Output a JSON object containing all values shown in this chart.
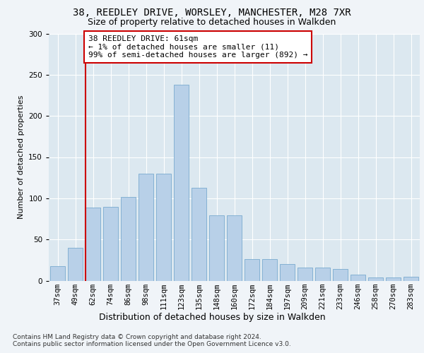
{
  "title_line1": "38, REEDLEY DRIVE, WORSLEY, MANCHESTER, M28 7XR",
  "title_line2": "Size of property relative to detached houses in Walkden",
  "xlabel": "Distribution of detached houses by size in Walkden",
  "ylabel": "Number of detached properties",
  "categories": [
    "37sqm",
    "49sqm",
    "62sqm",
    "74sqm",
    "86sqm",
    "98sqm",
    "111sqm",
    "123sqm",
    "135sqm",
    "148sqm",
    "160sqm",
    "172sqm",
    "184sqm",
    "197sqm",
    "209sqm",
    "221sqm",
    "233sqm",
    "246sqm",
    "258sqm",
    "270sqm",
    "283sqm"
  ],
  "values": [
    18,
    40,
    89,
    90,
    102,
    130,
    130,
    238,
    113,
    79,
    79,
    26,
    26,
    20,
    16,
    16,
    14,
    7,
    4,
    4,
    5
  ],
  "bar_color": "#b8d0e8",
  "bar_edge_color": "#7aaacf",
  "annotation_text": "38 REEDLEY DRIVE: 61sqm\n← 1% of detached houses are smaller (11)\n99% of semi-detached houses are larger (892) →",
  "annotation_box_facecolor": "#ffffff",
  "annotation_box_edgecolor": "#cc0000",
  "vline_color": "#cc0000",
  "vline_xindex": 2,
  "ylim": [
    0,
    300
  ],
  "yticks": [
    0,
    50,
    100,
    150,
    200,
    250,
    300
  ],
  "fig_facecolor": "#f0f4f8",
  "axes_facecolor": "#dce8f0",
  "grid_color": "#ffffff",
  "title_fontsize": 10,
  "subtitle_fontsize": 9,
  "ylabel_fontsize": 8,
  "xlabel_fontsize": 9,
  "tick_fontsize": 7.5,
  "annotation_fontsize": 8,
  "footer_fontsize": 6.5,
  "footer_line1": "Contains HM Land Registry data © Crown copyright and database right 2024.",
  "footer_line2": "Contains public sector information licensed under the Open Government Licence v3.0."
}
